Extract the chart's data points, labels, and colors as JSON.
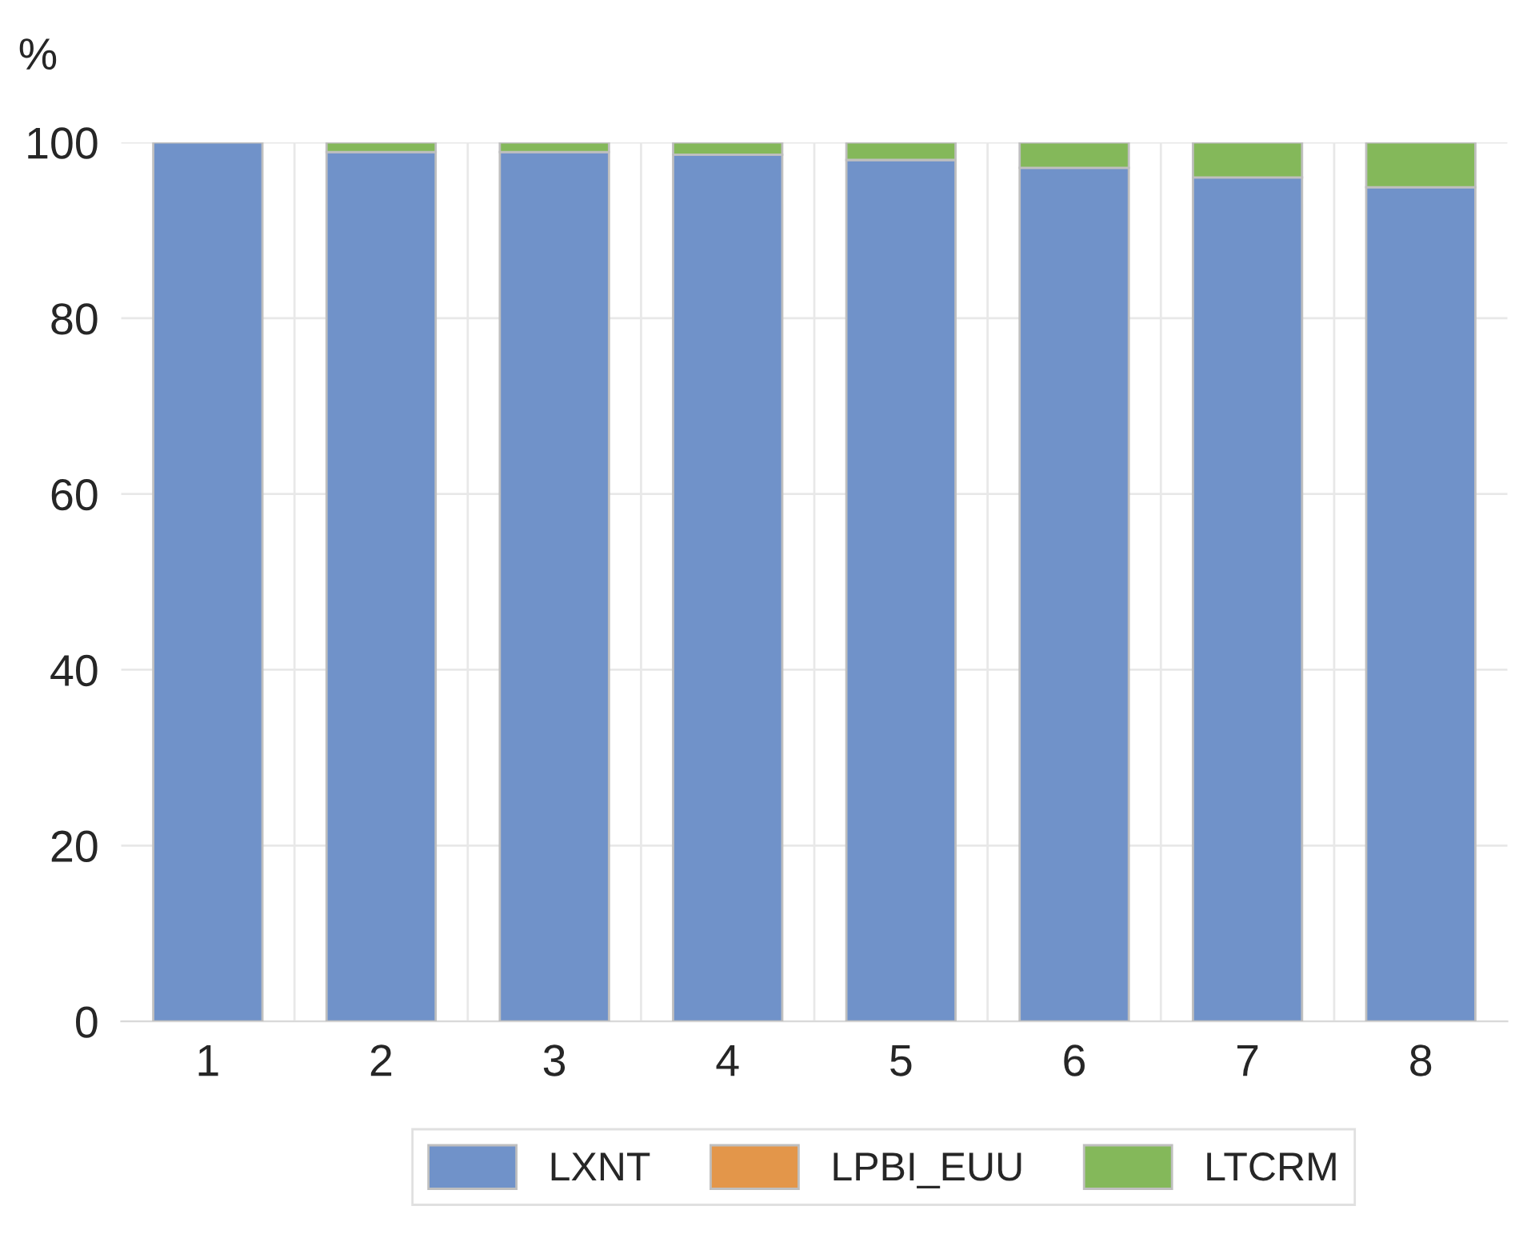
{
  "chart_data": {
    "type": "bar",
    "stacked": true,
    "ylabel": "%",
    "categories": [
      "1",
      "2",
      "3",
      "4",
      "5",
      "6",
      "7",
      "8"
    ],
    "series": [
      {
        "name": "LXNT",
        "color": "#7092c9",
        "values": [
          100,
          98.9,
          98.9,
          98.6,
          98.0,
          97.1,
          96.0,
          94.9
        ]
      },
      {
        "name": "LPBI_EUU",
        "color": "#e3964a",
        "values": [
          0,
          0,
          0,
          0,
          0,
          0,
          0,
          0
        ]
      },
      {
        "name": "LTCRM",
        "color": "#84b85a",
        "values": [
          0,
          1.1,
          1.1,
          1.4,
          2.0,
          2.9,
          4.0,
          5.1
        ]
      }
    ],
    "ylim": [
      0,
      100
    ],
    "yticks": [
      0,
      20,
      40,
      60,
      80,
      100
    ],
    "grid": true,
    "legend": "bottom"
  }
}
